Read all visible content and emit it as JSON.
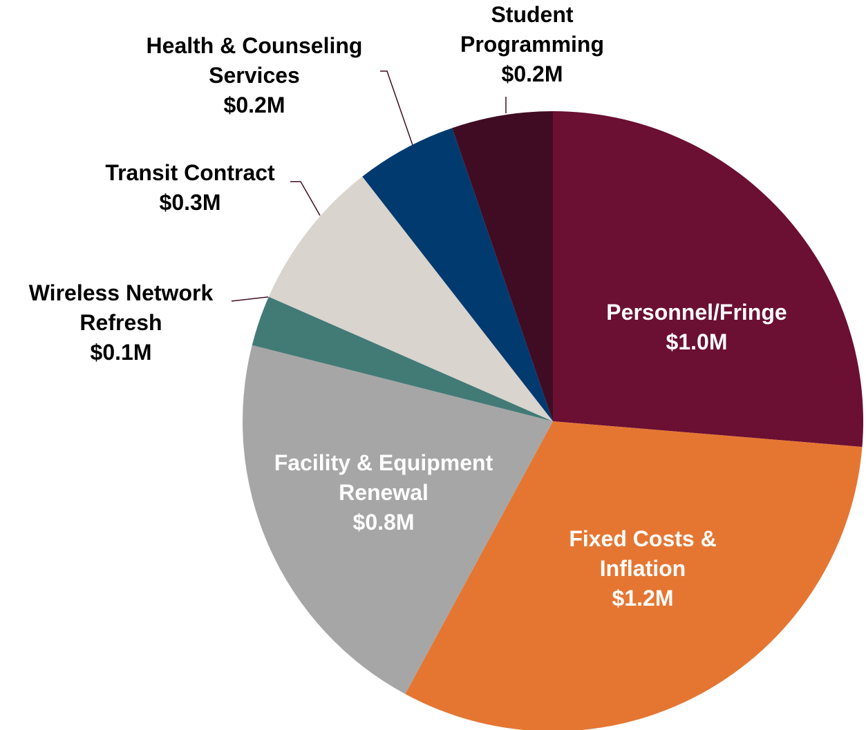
{
  "chart_data": {
    "type": "pie",
    "categories": [
      "Personnel/Fringe",
      "Fixed Costs & Inflation",
      "Facility & Equipment Renewal",
      "Wireless Network Refresh",
      "Transit Contract",
      "Health & Counseling Services",
      "Student Programming"
    ],
    "values": [
      1.0,
      1.2,
      0.8,
      0.1,
      0.3,
      0.2,
      0.2
    ],
    "value_labels": [
      "$1.0M",
      "$1.2M",
      "$0.8M",
      "$0.1M",
      "$0.3M",
      "$0.2M",
      "$0.2M"
    ],
    "colors": [
      "#6b0f33",
      "#e57632",
      "#a6a6a6",
      "#427a76",
      "#d9d4ce",
      "#003a6f",
      "#400c23"
    ]
  }
}
